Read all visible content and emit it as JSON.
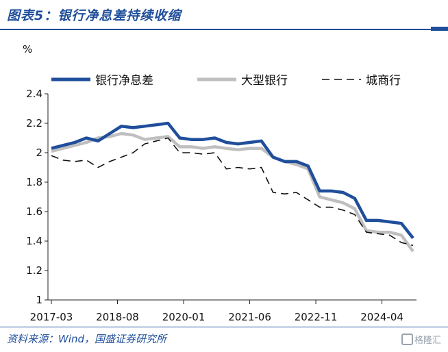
{
  "title": "图表5：银行净息差持续收缩",
  "source": "资料来源：Wind，国盛证券研究所",
  "watermark": "格隆汇",
  "chart_data": {
    "type": "line",
    "ylabel": "%",
    "ylim": [
      1,
      2.4
    ],
    "yticks": [
      "1",
      "1.2",
      "1.4",
      "1.6",
      "1.8",
      "2",
      "2.2",
      "2.4"
    ],
    "x": [
      "2017-03",
      "2017-06",
      "2017-09",
      "2017-12",
      "2018-03",
      "2018-06",
      "2018-09",
      "2018-12",
      "2019-03",
      "2019-06",
      "2019-09",
      "2019-12",
      "2020-03",
      "2020-06",
      "2020-09",
      "2020-12",
      "2021-03",
      "2021-06",
      "2021-09",
      "2021-12",
      "2022-03",
      "2022-06",
      "2022-09",
      "2022-12",
      "2023-03",
      "2023-06",
      "2023-09",
      "2023-12",
      "2024-03",
      "2024-06",
      "2024-09",
      "2024-12"
    ],
    "xticks": [
      "2017-03",
      "2018-08",
      "2020-01",
      "2021-06",
      "2022-11",
      "2024-04"
    ],
    "legend_position": "top",
    "series": [
      {
        "name": "银行净息差",
        "color": "#1f4e9b",
        "style": "solid-thick",
        "values": [
          2.03,
          2.05,
          2.07,
          2.1,
          2.08,
          2.13,
          2.18,
          2.17,
          2.18,
          2.19,
          2.2,
          2.1,
          2.09,
          2.09,
          2.1,
          2.07,
          2.06,
          2.07,
          2.08,
          1.97,
          1.94,
          1.94,
          1.91,
          1.74,
          1.74,
          1.73,
          1.69,
          1.54,
          1.54,
          1.53,
          1.52,
          1.42
        ]
      },
      {
        "name": "大型银行",
        "color": "#bfbfbf",
        "style": "solid-thick",
        "values": [
          2.01,
          2.03,
          2.05,
          2.07,
          2.1,
          2.11,
          2.13,
          2.12,
          2.09,
          2.1,
          2.11,
          2.04,
          2.04,
          2.03,
          2.04,
          2.03,
          2.02,
          2.03,
          2.03,
          1.97,
          1.94,
          1.92,
          1.89,
          1.7,
          1.68,
          1.66,
          1.62,
          1.47,
          1.46,
          1.46,
          1.44,
          1.33
        ]
      },
      {
        "name": "城商行",
        "color": "#111111",
        "style": "dashed",
        "values": [
          1.98,
          1.95,
          1.94,
          1.95,
          1.9,
          1.94,
          1.97,
          2.0,
          2.06,
          2.08,
          2.1,
          2.0,
          2.0,
          1.99,
          2.0,
          1.89,
          1.9,
          1.89,
          1.9,
          1.73,
          1.72,
          1.73,
          1.68,
          1.63,
          1.63,
          1.61,
          1.58,
          1.46,
          1.45,
          1.44,
          1.39,
          1.37
        ]
      }
    ]
  }
}
